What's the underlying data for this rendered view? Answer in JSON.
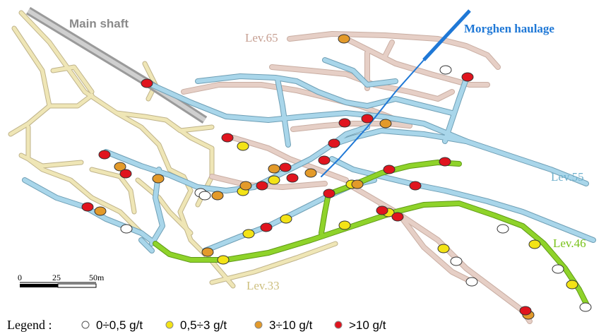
{
  "labels": {
    "main_shaft": "Main shaft",
    "morghen_haulage": "Morghen haulage",
    "lev65": "Lev.65",
    "lev55": "Lev.55",
    "lev46": "Lev.46",
    "lev33": "Lev.33"
  },
  "scale_bar": {
    "tick0": "0",
    "tick1": "25",
    "tick2": "50m"
  },
  "legend": {
    "prefix": "Legend :",
    "items": [
      {
        "label": "0÷0,5 g/t",
        "color": "#ffffff"
      },
      {
        "label": "0,5÷3 g/t",
        "color": "#f3e316"
      },
      {
        "label": "3÷10 g/t",
        "color": "#e39a2a"
      },
      {
        "label": ">10 g/t",
        "color": "#e0141e"
      }
    ]
  },
  "colors": {
    "main_shaft": "#9a9a9a",
    "morghen_haulage": "#1f78d6",
    "lev65": "#e6cfc6",
    "lev55": "#a9d6ea",
    "lev46": "#8fd32a",
    "lev33": "#efe6b6"
  }
}
